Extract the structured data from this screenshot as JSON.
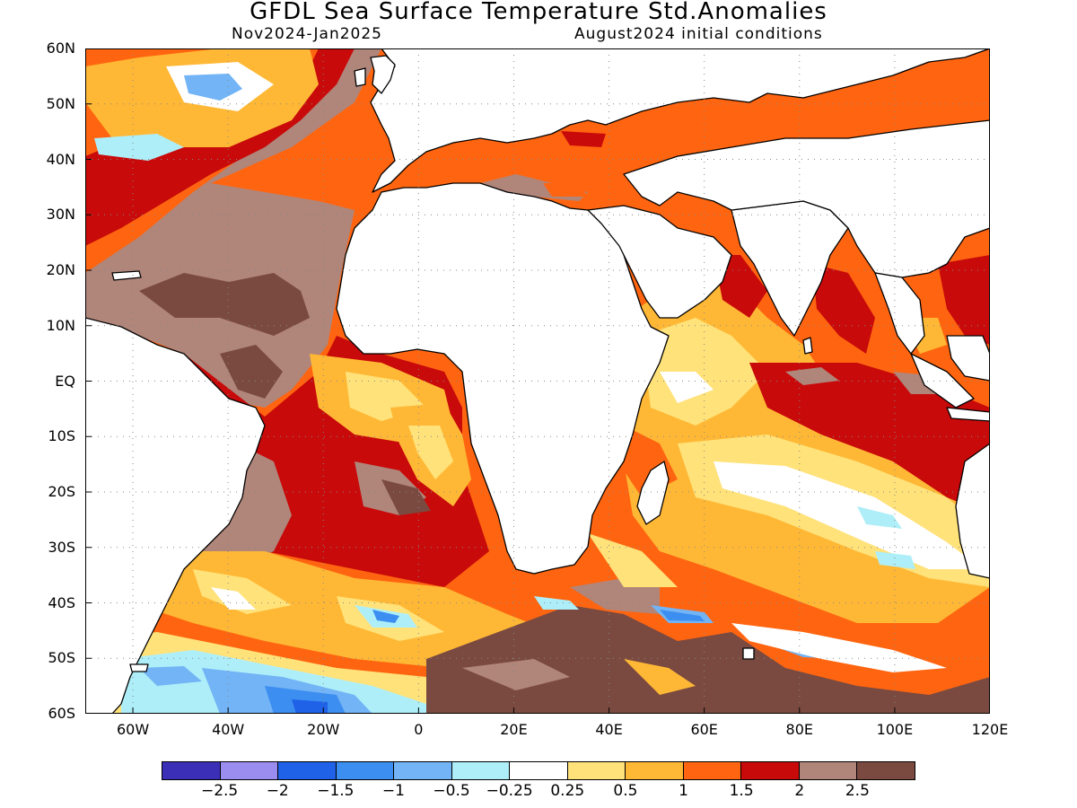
{
  "header": {
    "title": "GFDL Sea Surface Temperature Std.Anomalies",
    "period": "Nov2024-Jan2025",
    "init": "August2024 initial conditions"
  },
  "axes": {
    "lon_ticks": [
      "60W",
      "40W",
      "20W",
      "0",
      "20E",
      "40E",
      "60E",
      "80E",
      "100E",
      "120E"
    ],
    "lon_values": [
      -60,
      -40,
      -20,
      0,
      20,
      40,
      60,
      80,
      100,
      120
    ],
    "lat_ticks": [
      "60N",
      "50N",
      "40N",
      "30N",
      "20N",
      "10N",
      "EQ",
      "10S",
      "20S",
      "30S",
      "40S",
      "50S",
      "60S"
    ],
    "lat_values": [
      60,
      50,
      40,
      30,
      20,
      10,
      0,
      -10,
      -20,
      -30,
      -40,
      -50,
      -60
    ],
    "lon_range": [
      -70,
      120
    ],
    "lat_range": [
      -60,
      60
    ],
    "grid": "dotted"
  },
  "legend": {
    "colors": [
      "#3b2fb8",
      "#9b8cf0",
      "#1f62e8",
      "#3c8ef0",
      "#72b4f5",
      "#aeeef8",
      "#ffffff",
      "#ffe27a",
      "#ffb835",
      "#ff6510",
      "#c80a0a",
      "#b0857a",
      "#7a4a40"
    ],
    "labels": [
      "-2.5",
      "-2",
      "-1.5",
      "-1",
      "-0.5",
      "-0.25",
      "0.25",
      "0.5",
      "1",
      "1.5",
      "2",
      "2.5"
    ]
  }
}
